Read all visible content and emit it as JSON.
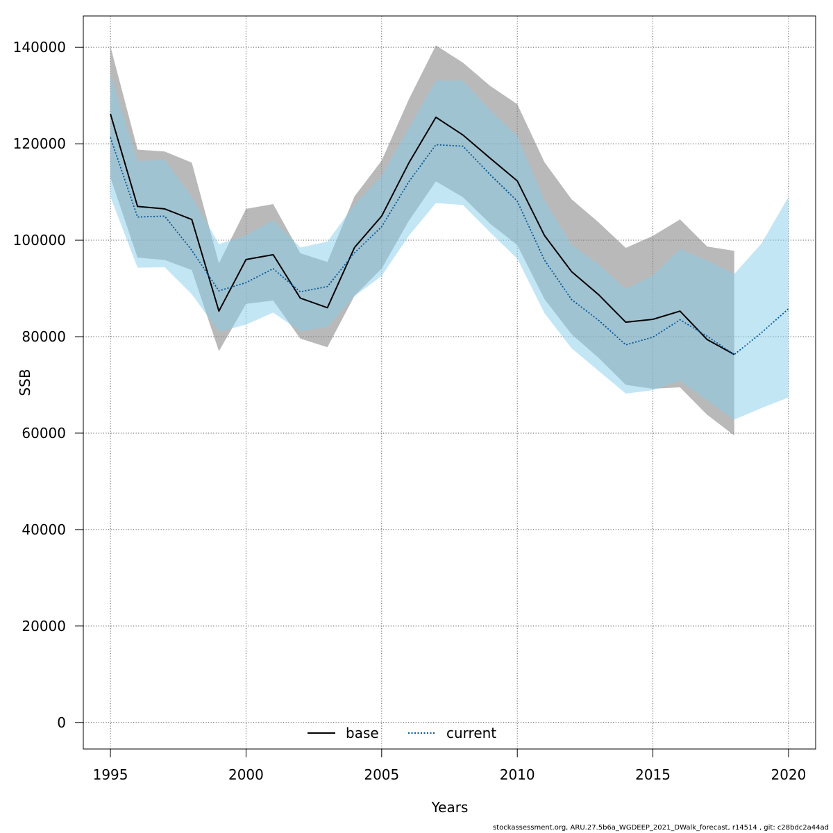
{
  "chart_data": {
    "type": "line",
    "xlabel": "Years",
    "ylabel": "SSB",
    "xlim": [
      1994,
      2021
    ],
    "ylim": [
      -5500,
      146500
    ],
    "x_ticks": [
      1995,
      2000,
      2005,
      2010,
      2015,
      2020
    ],
    "y_ticks": [
      0,
      20000,
      40000,
      60000,
      80000,
      100000,
      120000,
      140000
    ],
    "grid": true,
    "legend_position": "bottom-center",
    "series": [
      {
        "name": "base",
        "color": "#000000",
        "band_color": "#808080",
        "linestyle": "solid",
        "x": [
          1995,
          1996,
          1997,
          1998,
          1999,
          2000,
          2001,
          2002,
          2003,
          2004,
          2005,
          2006,
          2007,
          2008,
          2009,
          2010,
          2011,
          2012,
          2013,
          2014,
          2015,
          2016,
          2017,
          2018
        ],
        "y": [
          126200,
          107000,
          106500,
          104300,
          85300,
          96000,
          97000,
          88000,
          86000,
          98500,
          105000,
          116000,
          125500,
          121800,
          117000,
          112300,
          101000,
          93500,
          88700,
          83000,
          83600,
          85300,
          79400,
          76300
        ],
        "lower": [
          113000,
          96400,
          95900,
          93800,
          77000,
          86800,
          87500,
          79600,
          77800,
          88500,
          94100,
          104000,
          112200,
          108900,
          103400,
          99000,
          87800,
          80500,
          75600,
          70000,
          69200,
          69500,
          63800,
          59500
        ],
        "upper": [
          140200,
          118800,
          118400,
          116100,
          95200,
          106500,
          107500,
          97300,
          95500,
          109100,
          116500,
          129200,
          140400,
          136800,
          132000,
          128200,
          116200,
          108500,
          103700,
          98400,
          100900,
          104300,
          98700,
          97800
        ]
      },
      {
        "name": "current",
        "color": "#005596",
        "band_color": "#87CEEB",
        "linestyle": "dotted",
        "x": [
          1995,
          1996,
          1997,
          1998,
          1999,
          2000,
          2001,
          2002,
          2003,
          2004,
          2005,
          2006,
          2007,
          2008,
          2009,
          2010,
          2011,
          2012,
          2013,
          2014,
          2015,
          2016,
          2017,
          2018,
          2019,
          2020
        ],
        "y": [
          121300,
          104800,
          105000,
          97900,
          89500,
          91200,
          94100,
          89300,
          90400,
          97400,
          102800,
          112100,
          119800,
          119500,
          113600,
          108100,
          95900,
          87700,
          83400,
          78300,
          79900,
          83500,
          80100,
          76300,
          80800,
          85800
        ],
        "lower": [
          109000,
          94300,
          94400,
          88800,
          81000,
          82500,
          85000,
          81100,
          82000,
          88400,
          92600,
          100900,
          107700,
          107300,
          101600,
          96200,
          84900,
          77600,
          72900,
          68200,
          68900,
          70900,
          66800,
          62800,
          65200,
          67400
        ],
        "upper": [
          134400,
          116400,
          116700,
          109000,
          99200,
          101000,
          104200,
          98500,
          99700,
          107400,
          113400,
          123300,
          133100,
          133100,
          127000,
          121600,
          108300,
          99100,
          95000,
          89900,
          92700,
          98200,
          95800,
          93000,
          99300,
          109000
        ]
      }
    ]
  },
  "footer_text": "stockassessment.org, ARU.27.5b6a_WGDEEP_2021_DWalk_forecast, r14514 , git: c28bdc2a44ad"
}
